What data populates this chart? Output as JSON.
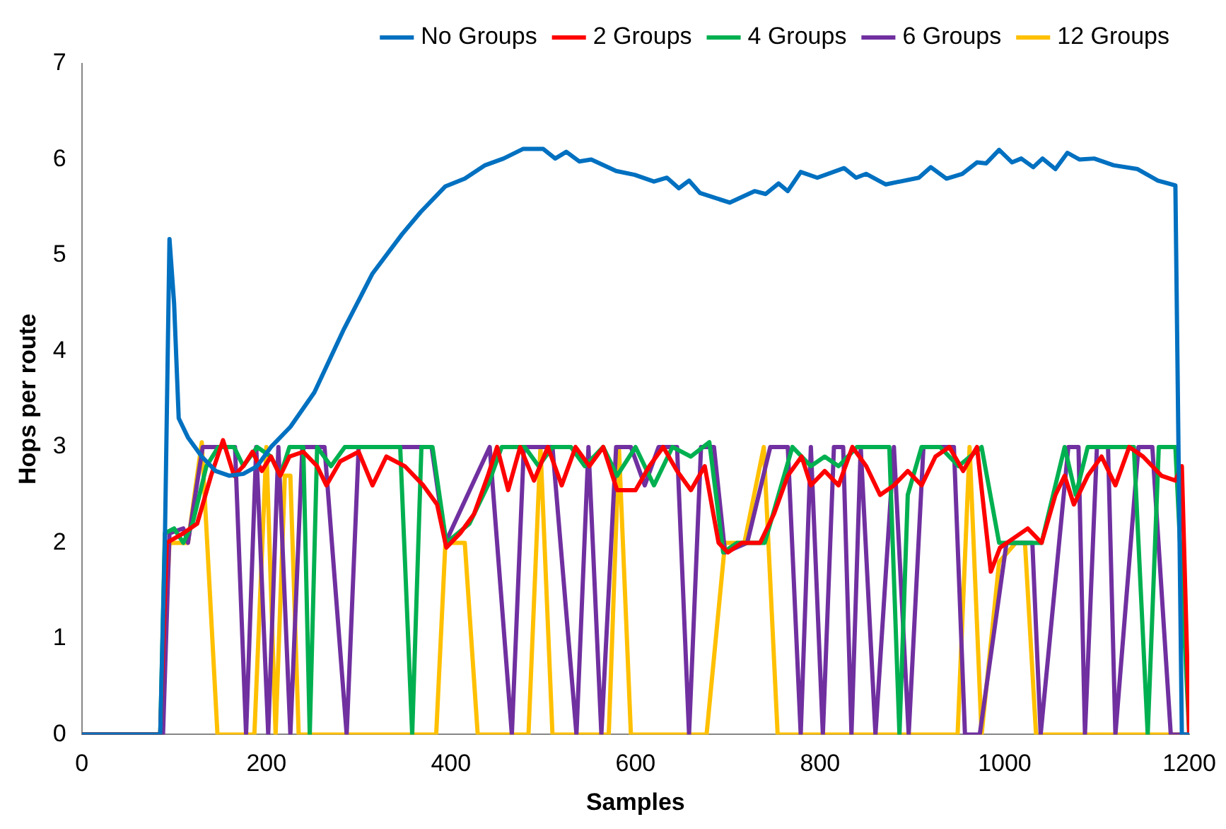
{
  "chart_data": {
    "type": "line",
    "xlabel": "Samples",
    "ylabel": "Hops per route",
    "xlim": [
      0,
      1200
    ],
    "xticks": [
      0,
      200,
      400,
      600,
      800,
      1000,
      1200
    ],
    "ylim": [
      0,
      7
    ],
    "yticks": [
      0,
      1,
      2,
      3,
      4,
      5,
      6,
      7
    ],
    "legend": "top",
    "marker": "none",
    "line_style": "solid",
    "series": [
      {
        "name": "No Groups",
        "color": "#0070c0",
        "x": [
          0,
          85,
          90,
          95,
          100,
          105,
          115,
          130,
          145,
          160,
          175,
          190,
          205,
          226,
          252,
          284,
          315,
          347,
          367,
          394,
          415,
          437,
          457,
          478,
          500,
          513,
          525,
          539,
          552,
          579,
          599,
          620,
          634,
          647,
          658,
          670,
          702,
          729,
          741,
          755,
          765,
          779,
          797,
          826,
          839,
          850,
          871,
          907,
          920,
          937,
          954,
          970,
          980,
          994,
          1008,
          1018,
          1031,
          1041,
          1055,
          1068,
          1081,
          1097,
          1118,
          1144,
          1166,
          1185,
          1192,
          1200
        ],
        "values": [
          0,
          0,
          2,
          5.17,
          4.5,
          3.3,
          3.1,
          2.9,
          2.75,
          2.7,
          2.72,
          2.8,
          3.0,
          3.21,
          3.57,
          4.23,
          4.81,
          5.22,
          5.45,
          5.72,
          5.8,
          5.94,
          6.01,
          6.11,
          6.11,
          6.01,
          6.08,
          5.98,
          6.0,
          5.88,
          5.84,
          5.77,
          5.81,
          5.7,
          5.78,
          5.65,
          5.55,
          5.67,
          5.64,
          5.75,
          5.67,
          5.87,
          5.81,
          5.91,
          5.81,
          5.85,
          5.74,
          5.81,
          5.92,
          5.8,
          5.85,
          5.97,
          5.96,
          6.1,
          5.97,
          6.01,
          5.92,
          6.01,
          5.9,
          6.07,
          6.0,
          6.01,
          5.94,
          5.9,
          5.78,
          5.73,
          0,
          0
        ]
      },
      {
        "name": "2 Groups",
        "color": "#ff0000",
        "x": [
          0,
          85,
          92,
          110,
          125,
          140,
          153,
          165,
          175,
          185,
          195,
          205,
          215,
          225,
          240,
          255,
          265,
          280,
          300,
          315,
          330,
          350,
          370,
          385,
          395,
          410,
          425,
          440,
          450,
          462,
          475,
          490,
          505,
          520,
          535,
          550,
          565,
          580,
          600,
          615,
          630,
          645,
          660,
          675,
          690,
          700,
          715,
          735,
          750,
          765,
          780,
          790,
          805,
          820,
          835,
          850,
          865,
          880,
          895,
          910,
          925,
          940,
          955,
          970,
          985,
          995,
          1010,
          1025,
          1040,
          1055,
          1065,
          1075,
          1090,
          1105,
          1120,
          1135,
          1150,
          1170,
          1185,
          1192,
          1200
        ],
        "values": [
          0,
          0,
          2.0,
          2.1,
          2.2,
          2.7,
          3.07,
          2.7,
          2.8,
          2.95,
          2.75,
          2.9,
          2.7,
          2.9,
          2.95,
          2.8,
          2.6,
          2.85,
          2.95,
          2.6,
          2.9,
          2.8,
          2.6,
          2.4,
          1.95,
          2.1,
          2.3,
          2.7,
          3.0,
          2.55,
          3.0,
          2.65,
          3.0,
          2.6,
          3.0,
          2.8,
          3.0,
          2.55,
          2.55,
          2.8,
          3.0,
          2.75,
          2.55,
          2.8,
          2.0,
          1.9,
          2.0,
          2.0,
          2.3,
          2.7,
          2.9,
          2.6,
          2.75,
          2.6,
          3.0,
          2.8,
          2.5,
          2.6,
          2.75,
          2.6,
          2.9,
          3.0,
          2.75,
          3.0,
          1.7,
          1.95,
          2.05,
          2.15,
          2.0,
          2.5,
          2.7,
          2.4,
          2.7,
          2.9,
          2.6,
          3.0,
          2.9,
          2.7,
          2.65,
          2.8,
          0
        ]
      },
      {
        "name": "4 Groups",
        "color": "#00b050",
        "x": [
          0,
          85,
          90,
          100,
          110,
          120,
          135,
          148,
          165,
          175,
          190,
          205,
          215,
          225,
          240,
          247,
          255,
          270,
          285,
          300,
          345,
          358,
          368,
          380,
          395,
          420,
          440,
          455,
          480,
          495,
          510,
          530,
          545,
          565,
          580,
          600,
          620,
          640,
          660,
          680,
          695,
          710,
          740,
          755,
          770,
          790,
          805,
          820,
          840,
          860,
          875,
          886,
          895,
          910,
          930,
          950,
          975,
          994,
          1010,
          1040,
          1065,
          1077,
          1090,
          1140,
          1155,
          1167,
          1185,
          1200
        ],
        "values": [
          0,
          0,
          2.1,
          2.15,
          2.0,
          2.2,
          2.8,
          3.0,
          3.0,
          2.8,
          3.0,
          2.9,
          2.7,
          3.0,
          3.0,
          0,
          3.0,
          2.8,
          3.0,
          3.0,
          3.0,
          0,
          3.0,
          3.0,
          2.0,
          2.2,
          2.6,
          3.0,
          3.0,
          2.8,
          3.0,
          3.0,
          2.8,
          3.0,
          2.7,
          3.0,
          2.6,
          3.0,
          2.9,
          3.05,
          1.9,
          2.0,
          2.0,
          2.5,
          3.0,
          2.8,
          2.9,
          2.8,
          3.0,
          3.0,
          3.0,
          0,
          2.5,
          3.0,
          3.0,
          2.8,
          3.0,
          2.0,
          2.0,
          2.0,
          3.0,
          2.5,
          3.0,
          3.0,
          0,
          3.0,
          3.0,
          0
        ]
      },
      {
        "name": "6 Groups",
        "color": "#7030a0",
        "x": [
          0,
          88,
          95,
          110,
          115,
          131,
          166,
          178,
          189,
          202,
          213,
          226,
          239,
          263,
          287,
          300,
          379,
          394,
          442,
          466,
          479,
          510,
          536,
          549,
          563,
          579,
          595,
          610,
          625,
          645,
          658,
          671,
          685,
          697,
          721,
          746,
          765,
          779,
          790,
          803,
          815,
          825,
          834,
          844,
          860,
          880,
          896,
          912,
          945,
          957,
          973,
          1002,
          1030,
          1039,
          1069,
          1080,
          1087,
          1100,
          1112,
          1120,
          1145,
          1160,
          1180,
          1200
        ],
        "values": [
          0,
          0,
          2.1,
          2.15,
          2.0,
          3.0,
          3.0,
          0,
          3.0,
          0,
          3.0,
          0,
          3.0,
          3.0,
          0,
          3.0,
          3.0,
          2.0,
          3.0,
          0,
          3.0,
          3.0,
          0,
          3.0,
          0,
          3.0,
          3.0,
          2.6,
          3.0,
          3.0,
          0,
          3.0,
          3.0,
          1.9,
          2.0,
          3.0,
          3.0,
          0,
          3.0,
          0,
          3.0,
          3.0,
          0,
          3.0,
          0,
          3.0,
          0,
          3.0,
          3.0,
          0,
          0,
          2.0,
          2.0,
          0,
          3.0,
          3.0,
          0,
          3.0,
          3.0,
          0,
          3.0,
          3.0,
          0,
          0
        ]
      },
      {
        "name": "12 Groups",
        "color": "#ffc000",
        "x": [
          0,
          85,
          95,
          115,
          130,
          147,
          187,
          200,
          210,
          220,
          226,
          235,
          384,
          394,
          415,
          429,
          484,
          497,
          510,
          571,
          582,
          595,
          677,
          697,
          718,
          739,
          754,
          949,
          962,
          975,
          994,
          1012,
          1022,
          1034,
          1200
        ],
        "values": [
          0,
          0,
          2.0,
          2.0,
          3.05,
          0,
          0,
          3.0,
          0,
          2.7,
          2.7,
          0,
          0,
          2.0,
          2.0,
          0,
          0,
          3.0,
          0,
          0,
          3.0,
          0,
          0,
          2.0,
          2.0,
          3.0,
          0,
          0,
          3.0,
          0,
          1.8,
          2.0,
          2.0,
          0,
          0
        ]
      }
    ]
  }
}
